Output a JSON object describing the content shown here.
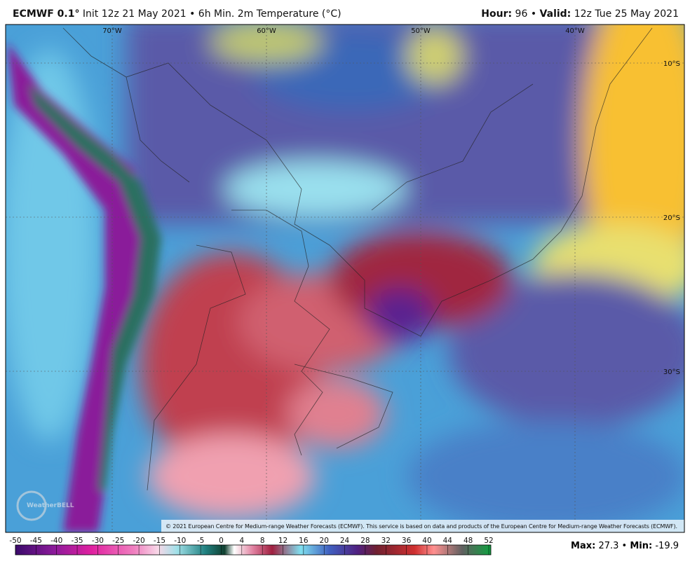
{
  "header": {
    "model": "ECMWF 0.1°",
    "info": "Init 12z 21 May 2021 • 6h Min. 2m Temperature (°C)",
    "hour_label": "Hour:",
    "hour": "96",
    "separator": "•",
    "valid_label": "Valid:",
    "valid": "12z Tue 25 May 2021"
  },
  "map": {
    "longitudes": [
      "70°W",
      "60°W",
      "50°W",
      "40°W"
    ],
    "latitudes": [
      "10°S",
      "20°S",
      "30°S"
    ],
    "copyright": "© 2021 European Centre for Medium-range Weather Forecasts (ECMWF). This service is based on data and products of the European Centre for Medium-range Weather Forecasts (ECMWF).",
    "watermark": "WeatherBELL"
  },
  "colorbar": {
    "ticks": [
      -50,
      -45,
      -40,
      -35,
      -30,
      -25,
      -20,
      -15,
      -10,
      -5,
      0,
      4,
      8,
      12,
      16,
      20,
      24,
      28,
      32,
      36,
      40,
      44,
      48,
      52
    ]
  },
  "footer": {
    "max_label": "Max:",
    "max": "27.3",
    "min_label": "Min:",
    "min": "-19.9"
  }
}
